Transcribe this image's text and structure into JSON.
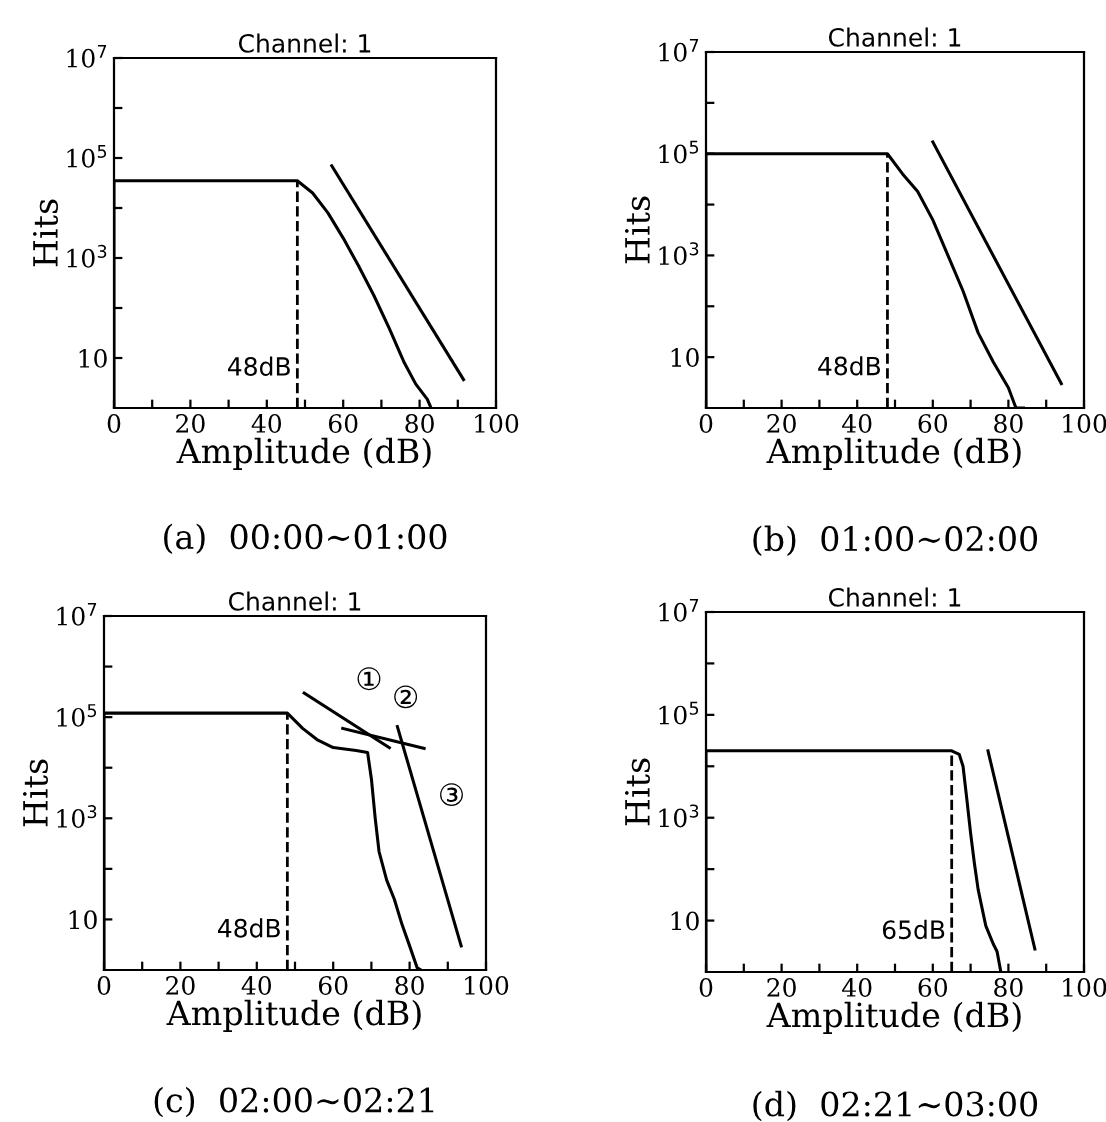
{
  "chart_data": [
    {
      "type": "line",
      "title": "Channel: 1",
      "xlabel": "Amplitude (dB)",
      "ylabel": "Hits",
      "log": "y",
      "xlim": [
        0,
        100
      ],
      "ylim": [
        1,
        10000000
      ],
      "xticks": [
        0,
        {
          "value": 10,
          "label": null
        },
        20,
        {
          "value": 30,
          "label": null
        },
        40,
        {
          "value": 50,
          "label": null
        },
        60,
        {
          "value": 70,
          "label": null
        },
        80,
        {
          "value": 90,
          "label": null
        },
        100
      ],
      "yticks": [
        {
          "value": 10,
          "label": "10"
        },
        {
          "value": 100,
          "label": null
        },
        {
          "value": 1000,
          "label": "10$^{3}$"
        },
        {
          "value": 10000,
          "label": null
        },
        {
          "value": 100000,
          "label": "10$^{5}$"
        },
        {
          "value": 1000000,
          "label": null
        },
        {
          "value": 10000000,
          "label": "10$^{7}$"
        }
      ],
      "series": [
        {
          "color": "#000000",
          "x": [
            0,
            0,
            48,
            52,
            56,
            60,
            64,
            68,
            72,
            76,
            79,
            82,
            83
          ],
          "values": [
            1,
            35000,
            35000,
            20000,
            8000,
            2500,
            700,
            180,
            40,
            8,
            3,
            1.5,
            1
          ]
        },
        {
          "color": "#000000",
          "x": [
            57,
            91.5
          ],
          "values": [
            70000,
            3.7
          ]
        }
      ],
      "ref_lines": [
        {
          "axis": "x",
          "value": 48,
          "label": "48dB",
          "line_style": "dashed",
          "color": "#000000"
        }
      ],
      "annotations": [
        "(a)  00:00∼01:00"
      ]
    },
    {
      "type": "line",
      "title": "Channel: 1",
      "xlabel": "Amplitude (dB)",
      "ylabel": "Hits",
      "log": "y",
      "xlim": [
        0,
        100
      ],
      "ylim": [
        1,
        10000000
      ],
      "xticks": [
        0,
        {
          "value": 10,
          "label": null
        },
        20,
        {
          "value": 30,
          "label": null
        },
        40,
        {
          "value": 50,
          "label": null
        },
        60,
        {
          "value": 70,
          "label": null
        },
        80,
        {
          "value": 90,
          "label": null
        },
        100
      ],
      "yticks": [
        {
          "value": 10,
          "label": "10"
        },
        {
          "value": 100,
          "label": null
        },
        {
          "value": 1000,
          "label": "10$^{3}$"
        },
        {
          "value": 10000,
          "label": null
        },
        {
          "value": 100000,
          "label": "10$^{5}$"
        },
        {
          "value": 1000000,
          "label": null
        },
        {
          "value": 10000000,
          "label": "10$^{7}$"
        }
      ],
      "series": [
        {
          "color": "#000000",
          "x": [
            0,
            0,
            48,
            52,
            56,
            60,
            64,
            68,
            72,
            76,
            80,
            82,
            84
          ],
          "values": [
            1,
            100000,
            100000,
            40000,
            18000,
            5000,
            1000,
            200,
            30,
            8,
            2.5,
            1,
            1
          ]
        },
        {
          "color": "#000000",
          "x": [
            60,
            94
          ],
          "values": [
            170000,
            3
          ]
        }
      ],
      "ref_lines": [
        {
          "axis": "x",
          "value": 48,
          "label": "48dB",
          "line_style": "dashed",
          "color": "#000000"
        }
      ],
      "annotations": [
        "(b)  01:00∼02:00"
      ]
    },
    {
      "type": "line",
      "title": "Channel: 1",
      "xlabel": "Amplitude (dB)",
      "ylabel": "Hits",
      "log": "y",
      "xlim": [
        0,
        100
      ],
      "ylim": [
        1,
        10000000
      ],
      "xticks": [
        0,
        {
          "value": 10,
          "label": null
        },
        20,
        {
          "value": 30,
          "label": null
        },
        40,
        {
          "value": 50,
          "label": null
        },
        60,
        {
          "value": 70,
          "label": null
        },
        80,
        {
          "value": 90,
          "label": null
        },
        100
      ],
      "yticks": [
        {
          "value": 10,
          "label": "10"
        },
        {
          "value": 100,
          "label": null
        },
        {
          "value": 1000,
          "label": "10$^{3}$"
        },
        {
          "value": 10000,
          "label": null
        },
        {
          "value": 100000,
          "label": "10$^{5}$"
        },
        {
          "value": 1000000,
          "label": null
        },
        {
          "value": 10000000,
          "label": "10$^{7}$"
        }
      ],
      "series": [
        {
          "color": "#000000",
          "x": [
            0,
            0,
            48,
            52,
            56,
            60,
            66,
            69,
            70,
            71,
            72,
            74,
            76,
            78,
            80,
            82,
            83
          ],
          "values": [
            1,
            120000,
            120000,
            60000,
            35000,
            25000,
            22000,
            20000,
            6000,
            1000,
            220,
            60,
            25,
            8,
            3,
            1.1,
            1
          ]
        },
        {
          "color": "#000000",
          "x": [
            52.4,
            74.7
          ],
          "values": [
            300000,
            25000
          ]
        },
        {
          "color": "#000000",
          "x": [
            62.5,
            83.8
          ],
          "values": [
            60000,
            24000
          ]
        },
        {
          "color": "#000000",
          "x": [
            76.8,
            93.5
          ],
          "values": [
            65000,
            3
          ]
        }
      ],
      "ref_lines": [
        {
          "axis": "x",
          "value": 48,
          "label": "48dB",
          "line_style": "dashed",
          "color": "#000000"
        }
      ],
      "annotations": [
        "(c)  02:00∼02:21",
        "①",
        "②",
        "③"
      ]
    },
    {
      "type": "line",
      "title": "Channel: 1",
      "xlabel": "Amplitude (dB)",
      "ylabel": "Hits",
      "log": "y",
      "xlim": [
        0,
        100
      ],
      "ylim": [
        1,
        10000000
      ],
      "xticks": [
        0,
        {
          "value": 10,
          "label": null
        },
        20,
        {
          "value": 30,
          "label": null
        },
        40,
        {
          "value": 50,
          "label": null
        },
        60,
        {
          "value": 70,
          "label": null
        },
        80,
        {
          "value": 90,
          "label": null
        },
        100
      ],
      "yticks": [
        {
          "value": 10,
          "label": "10"
        },
        {
          "value": 100,
          "label": null
        },
        {
          "value": 1000,
          "label": "10$^{3}$"
        },
        {
          "value": 10000,
          "label": null
        },
        {
          "value": 100000,
          "label": "10$^{5}$"
        },
        {
          "value": 1000000,
          "label": null
        },
        {
          "value": 10000000,
          "label": "10$^{7}$"
        }
      ],
      "series": [
        {
          "color": "#000000",
          "x": [
            0,
            0,
            65,
            67,
            68,
            69,
            70,
            71,
            72,
            74,
            76,
            77,
            78
          ],
          "values": [
            1,
            20000,
            20000,
            17000,
            10000,
            2300,
            500,
            130,
            40,
            8,
            3.5,
            2.5,
            1
          ]
        },
        {
          "color": "#000000",
          "x": [
            74.6,
            87
          ],
          "values": [
            20000,
            2.8
          ]
        }
      ],
      "ref_lines": [
        {
          "axis": "x",
          "value": 65,
          "label": "65dB",
          "line_style": "dashed",
          "color": "#000000"
        }
      ],
      "annotations": [
        "(d)  02:21∼03:00"
      ]
    }
  ]
}
